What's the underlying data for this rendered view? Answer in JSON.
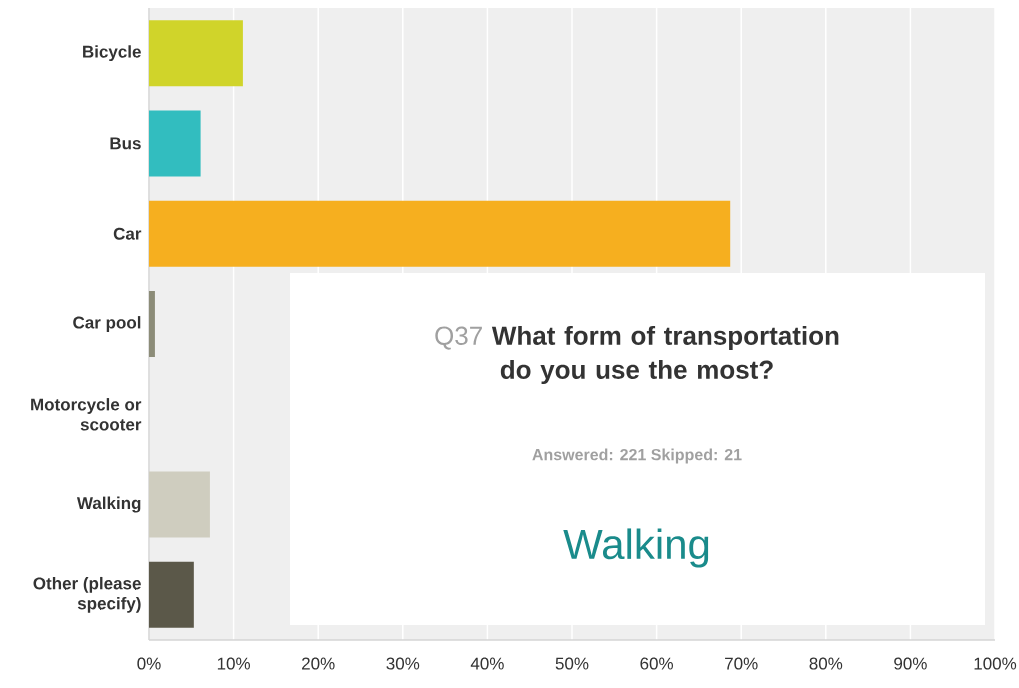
{
  "chart_data": {
    "type": "bar",
    "orientation": "horizontal",
    "title": "What form of transportation do you use the most?",
    "subtitle": "Answered: 221    Skipped: 21",
    "annotations": [
      "Q37",
      "Walking"
    ],
    "categories": [
      "Bicycle",
      "Bus",
      "Car",
      "Car pool",
      "Motorcycle or scooter",
      "Walking",
      "Other (please specify)"
    ],
    "values": [
      11.1,
      6.1,
      68.7,
      0.7,
      0,
      7.2,
      5.3
    ],
    "colors": [
      "#d0d42a",
      "#32bdbf",
      "#f6af1f",
      "#8c8c78",
      "#a5a58d",
      "#cfcdbf",
      "#5b5849"
    ],
    "xlim": [
      0,
      100
    ],
    "xticks": [
      {
        "value": 0,
        "label": "0%"
      },
      {
        "value": 10,
        "label": "10%"
      },
      {
        "value": 20,
        "label": "20%"
      },
      {
        "value": 30,
        "label": "30%"
      },
      {
        "value": 40,
        "label": "40%"
      },
      {
        "value": 50,
        "label": "50%"
      },
      {
        "value": 60,
        "label": "60%"
      },
      {
        "value": 70,
        "label": "70%"
      },
      {
        "value": 80,
        "label": "80%"
      },
      {
        "value": 90,
        "label": "90%"
      },
      {
        "value": 100,
        "label": "100%"
      }
    ],
    "grid": "x"
  }
}
